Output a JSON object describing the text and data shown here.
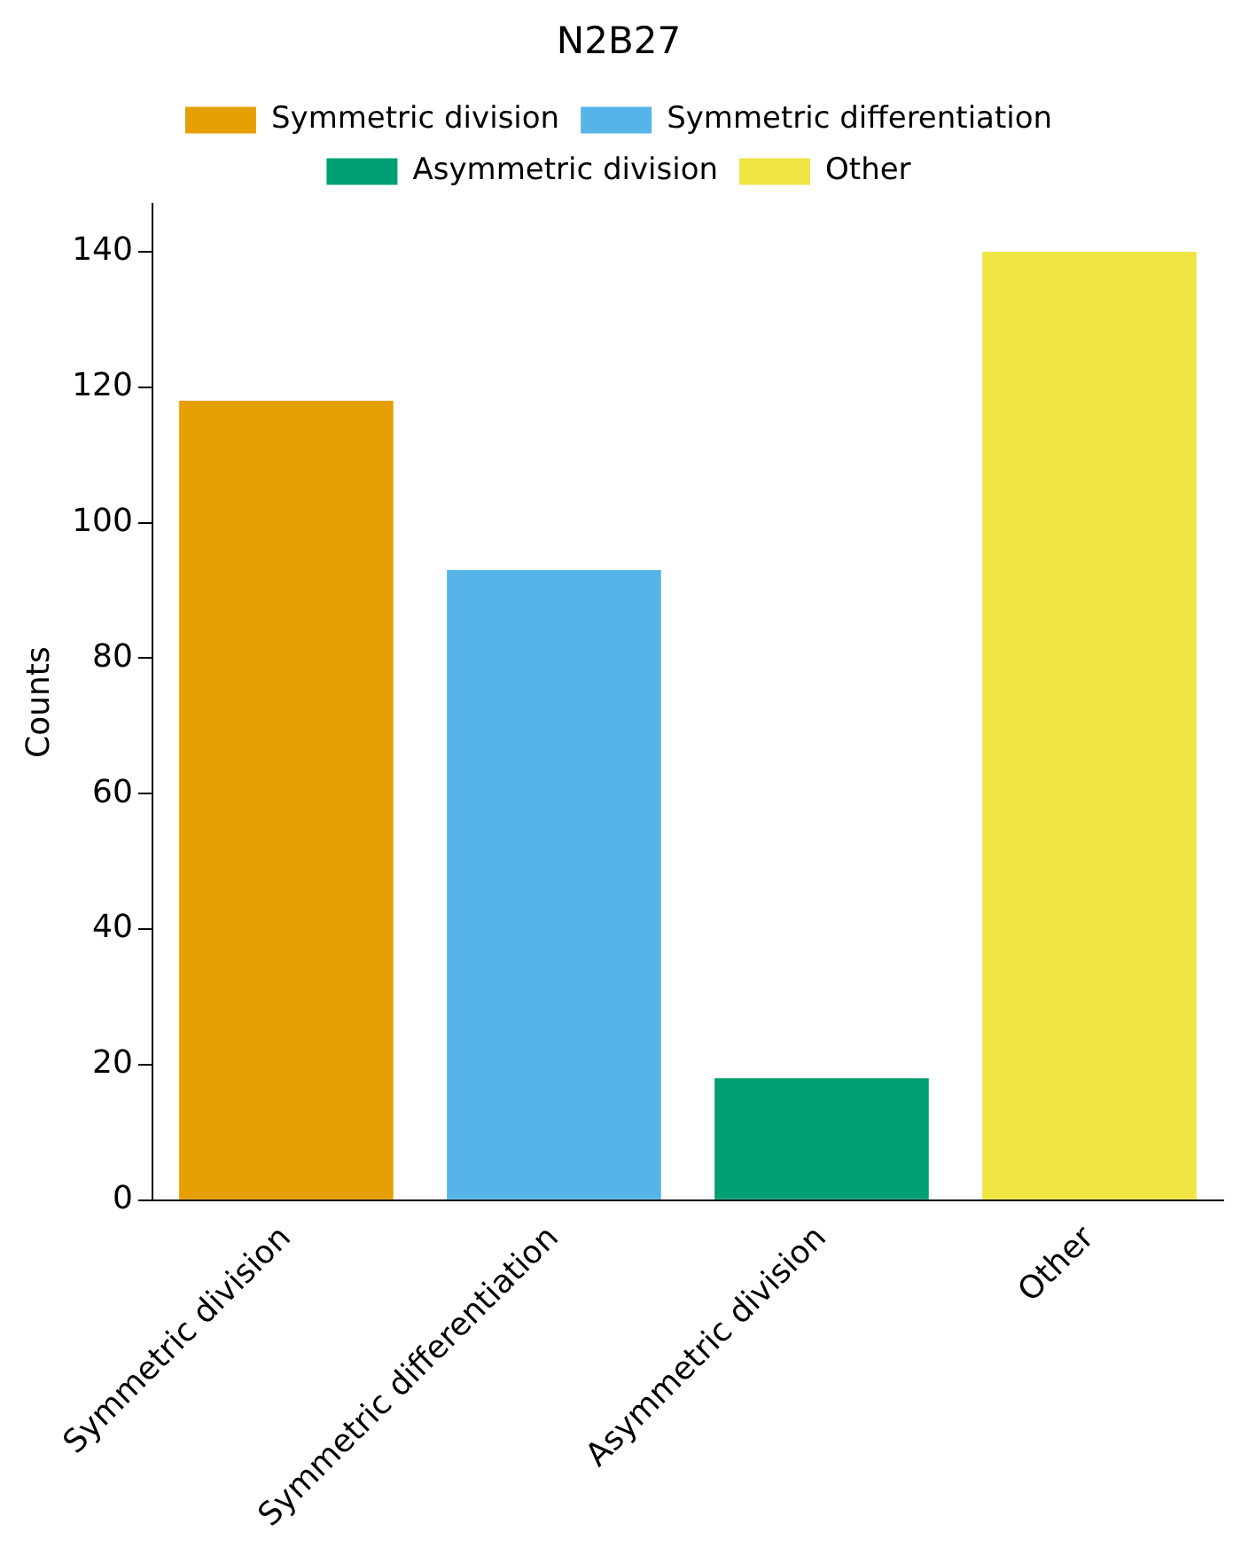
{
  "chart_data": {
    "type": "bar",
    "title": "N2B27",
    "ylabel": "Counts",
    "categories": [
      "Symmetric division",
      "Symmetric differentiation",
      "Asymmetric division",
      "Other"
    ],
    "series": [
      {
        "name": "Symmetric division",
        "color": "#e69f00",
        "values": [
          118,
          null,
          null,
          null
        ]
      },
      {
        "name": "Symmetric differentiation",
        "color": "#56b4e9",
        "values": [
          null,
          93,
          null,
          null
        ]
      },
      {
        "name": "Asymmetric division",
        "color": "#009e73",
        "values": [
          null,
          null,
          18,
          null
        ]
      },
      {
        "name": "Other",
        "color": "#f0e442",
        "values": [
          null,
          null,
          null,
          140
        ]
      }
    ],
    "ylim": [
      0,
      147
    ],
    "yticks": [
      0,
      20,
      40,
      60,
      80,
      100,
      120,
      140
    ],
    "grid": false,
    "legend": "top"
  }
}
